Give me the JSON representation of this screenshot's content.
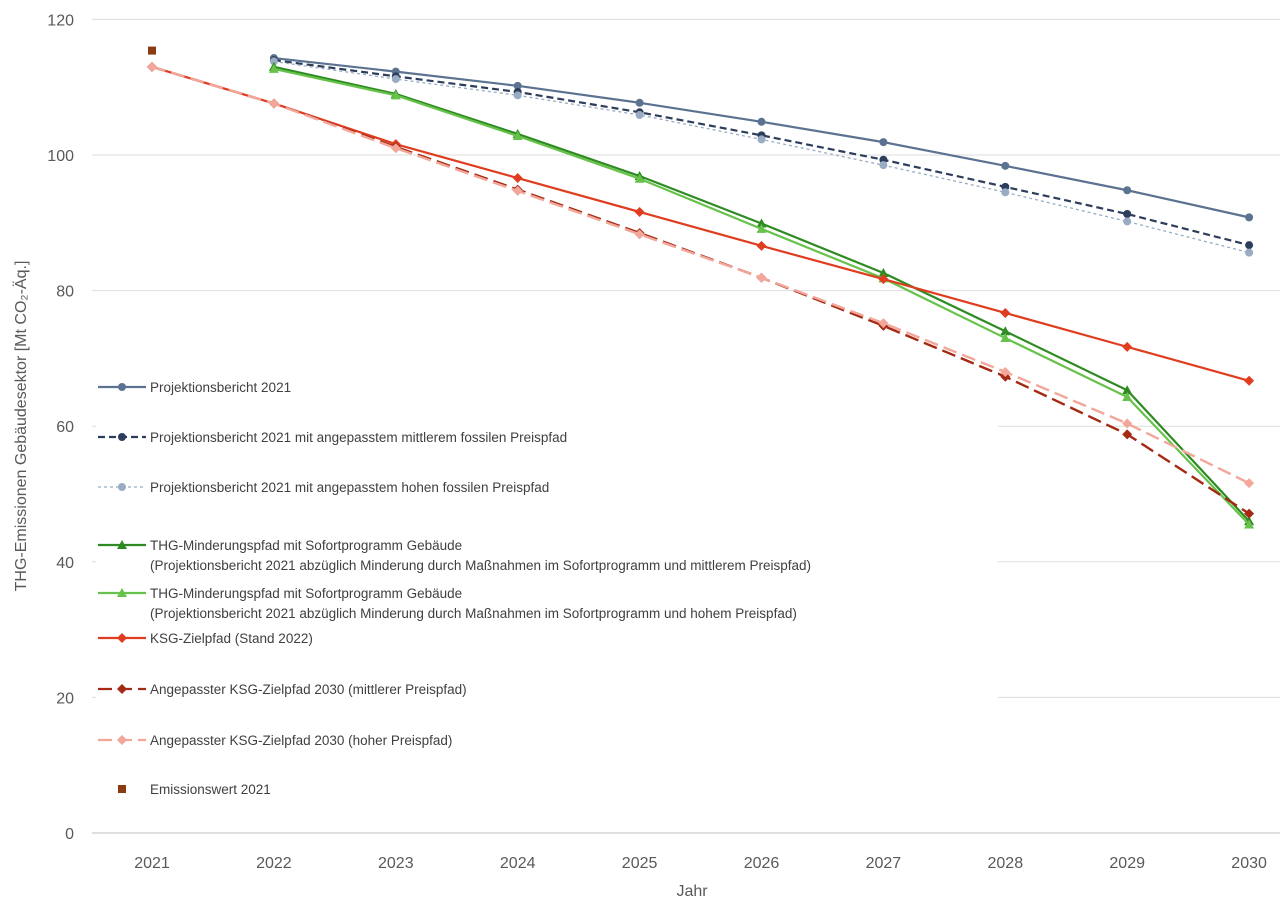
{
  "chart_data": {
    "type": "line",
    "xlabel": "Jahr",
    "ylabel": "THG-Emissionen Gebäudesektor [Mt CO₂-Äq.]",
    "x": [
      "2021",
      "2022",
      "2023",
      "2024",
      "2025",
      "2026",
      "2027",
      "2028",
      "2029",
      "2030"
    ],
    "ylim": [
      0,
      120
    ],
    "yticks": [
      0,
      20,
      40,
      60,
      80,
      100,
      120
    ],
    "grid": true,
    "legend_position": "left",
    "series": [
      {
        "name": "Projektionsbericht 2021",
        "color": "#5b7391",
        "marker": "circle",
        "dash": "solid",
        "values": [
          null,
          114.3,
          112.3,
          110.2,
          107.7,
          104.9,
          101.9,
          98.4,
          94.8,
          90.8
        ]
      },
      {
        "name": "Projektionsbericht 2021 mit angepasstem mittlerem fossilen Preispfad",
        "color": "#2c3e5c",
        "marker": "circle",
        "dash": "dashed",
        "values": [
          null,
          114.0,
          111.6,
          109.3,
          106.3,
          102.9,
          99.3,
          95.3,
          91.3,
          86.7
        ]
      },
      {
        "name": "Projektionsbericht 2021 mit angepasstem hohen fossilen Preispfad",
        "color": "#9aacc4",
        "marker": "circle",
        "dash": "dotted",
        "values": [
          null,
          113.8,
          111.2,
          108.8,
          105.9,
          102.3,
          98.5,
          94.5,
          90.2,
          85.6
        ]
      },
      {
        "name": "THG-Minderungspfad mit Sofortprogramm Gebäude\n(Projektionsbericht 2021 abzüglich Minderung durch Maßnahmen im Sofortprogramm und mittlerem Preispfad)",
        "color": "#2e8b22",
        "marker": "triangle",
        "dash": "solid",
        "values": [
          null,
          113.0,
          109.0,
          103.1,
          96.9,
          89.9,
          82.6,
          74.0,
          65.3,
          46.0
        ]
      },
      {
        "name": "THG-Minderungspfad mit Sofortprogramm Gebäude\n(Projektionsbericht 2021 abzüglich Minderung durch Maßnahmen im Sofortprogramm und hohem Preispfad)",
        "color": "#66c24a",
        "marker": "triangle",
        "dash": "solid",
        "values": [
          null,
          112.7,
          108.8,
          102.8,
          96.5,
          89.1,
          81.8,
          73.0,
          64.3,
          45.5
        ]
      },
      {
        "name": "KSG-Zielpfad (Stand 2022)",
        "color": "#e03c1f",
        "marker": "diamond",
        "dash": "solid",
        "values": [
          113.0,
          107.6,
          101.6,
          96.6,
          91.6,
          86.6,
          81.7,
          76.7,
          71.7,
          66.7
        ]
      },
      {
        "name": "Angepasster KSG-Zielpfad 2030 (mittlerer Preispfad)",
        "color": "#a52a14",
        "marker": "diamond",
        "dash": "longdash",
        "values": [
          113.0,
          107.6,
          101.2,
          94.9,
          88.5,
          81.9,
          74.8,
          67.3,
          58.8,
          47.1
        ]
      },
      {
        "name": "Angepasster KSG-Zielpfad 2030 (hoher Preispfad)",
        "color": "#f2a79a",
        "marker": "diamond",
        "dash": "longdash",
        "values": [
          113.0,
          107.6,
          101.0,
          94.7,
          88.3,
          81.9,
          75.2,
          68.0,
          60.4,
          51.6
        ]
      },
      {
        "name": "Emissionswert 2021",
        "color": "#8b3a12",
        "marker": "square",
        "dash": "none",
        "values": [
          115.4,
          null,
          null,
          null,
          null,
          null,
          null,
          null,
          null,
          null
        ]
      }
    ]
  }
}
